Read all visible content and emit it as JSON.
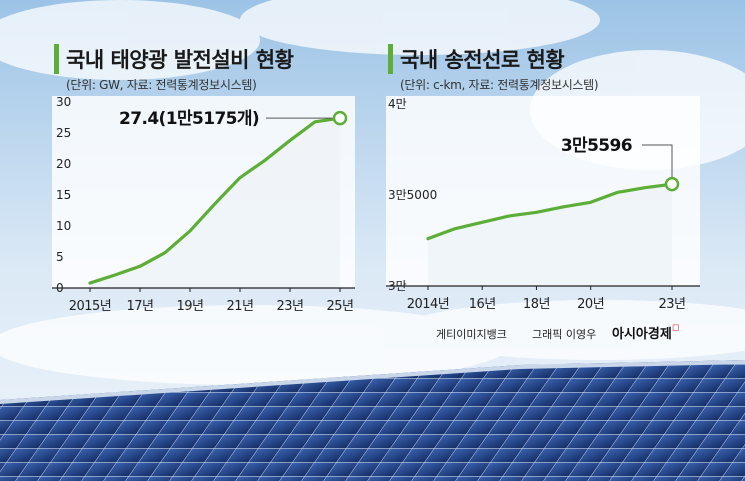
{
  "left_panel": {
    "title": "국내 태양광 발전설비 현황",
    "unit": "(단위: GW, 자료: 전력통계정보시스템)",
    "callout": "27.4(1만5175개)"
  },
  "right_panel": {
    "title": "국내 송전선로 현황",
    "unit": "(단위: c-km, 자료: 전력통계정보시스템)",
    "callout": "3만5596"
  },
  "credits": {
    "photo": "게티이미지뱅크",
    "graphic": "그래픽 이영우",
    "brand": "아시아경제"
  },
  "colors": {
    "line": "#5cae36",
    "accent_bar": "#5cae36",
    "panel_fill": "#ffffff",
    "sky_top": "#9cc3e6",
    "sky_bottom": "#e8f2fa",
    "solar_panel": "#1f3f86"
  },
  "chart_data": [
    {
      "type": "area",
      "title": "국내 태양광 발전설비 현황",
      "xlabel": "",
      "ylabel": "",
      "ylim": [
        0,
        30
      ],
      "yticks": [
        0,
        5,
        10,
        15,
        20,
        25,
        30
      ],
      "ytick_labels": [
        "0",
        "5",
        "10",
        "15",
        "20",
        "25",
        "30"
      ],
      "xlim": [
        2015,
        2025
      ],
      "xticks": [
        2015,
        2017,
        2019,
        2021,
        2023,
        2025
      ],
      "xtick_labels": [
        "2015년",
        "17년",
        "19년",
        "21년",
        "23년",
        "25년"
      ],
      "grid": false,
      "x": [
        2015,
        2016,
        2017,
        2018,
        2019,
        2020,
        2021,
        2022,
        2023,
        2024,
        2025
      ],
      "y": [
        0.8,
        2.1,
        3.5,
        5.7,
        9.2,
        13.6,
        17.8,
        20.6,
        23.8,
        26.8,
        27.4
      ],
      "annotation": "27.4(1만5175개)"
    },
    {
      "type": "area",
      "title": "국내 송전선로 현황",
      "xlabel": "",
      "ylabel": "",
      "ylim": [
        30000,
        40000
      ],
      "yticks": [
        30000,
        35000,
        40000
      ],
      "ytick_labels": [
        "3만",
        "3만5000",
        "4만"
      ],
      "xlim": [
        2014,
        2023
      ],
      "xticks": [
        2014,
        2016,
        2018,
        2020,
        2023
      ],
      "xtick_labels": [
        "2014년",
        "16년",
        "18년",
        "20년",
        "23년"
      ],
      "grid": false,
      "x": [
        2014,
        2015,
        2016,
        2017,
        2018,
        2019,
        2020,
        2021,
        2022,
        2023
      ],
      "y": [
        32600,
        33150,
        33500,
        33850,
        34050,
        34350,
        34600,
        35150,
        35400,
        35596
      ],
      "annotation": "3만5596"
    }
  ]
}
